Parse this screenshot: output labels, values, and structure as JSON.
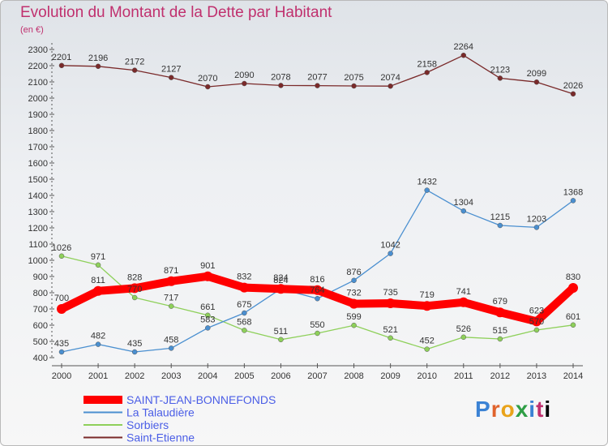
{
  "chart_data": {
    "type": "line",
    "title": "Evolution du Montant de la Dette par Habitant",
    "subtitle": "(en €)",
    "x": [
      "2000",
      "2001",
      "2002",
      "2003",
      "2004",
      "2005",
      "2006",
      "2007",
      "2008",
      "2009",
      "2010",
      "2011",
      "2012",
      "2013",
      "2014"
    ],
    "ylim": [
      400,
      2300
    ],
    "yticks": [
      400,
      500,
      600,
      700,
      800,
      900,
      1000,
      1100,
      1200,
      1300,
      1400,
      1500,
      1600,
      1700,
      1800,
      1900,
      2000,
      2100,
      2200,
      2300
    ],
    "grid": false,
    "legend_position": "bottom-left",
    "series": [
      {
        "name": "SAINT-JEAN-BONNEFONDS",
        "color": "#ff0000",
        "values": [
          700,
          811,
          828,
          871,
          901,
          832,
          824,
          816,
          732,
          735,
          719,
          741,
          679,
          623,
          830
        ]
      },
      {
        "name": "La Talaudière",
        "color": "#4a8fd0",
        "values": [
          435,
          482,
          435,
          458,
          583,
          675,
          824,
          764,
          876,
          1042,
          1432,
          1304,
          1215,
          1203,
          1368
        ]
      },
      {
        "name": "Sorbiers",
        "color": "#8ed05a",
        "values": [
          1026,
          971,
          770,
          717,
          661,
          568,
          511,
          550,
          599,
          521,
          452,
          526,
          515,
          570,
          601
        ]
      },
      {
        "name": "Saint-Etienne",
        "color": "#7a2a2a",
        "values": [
          2201,
          2196,
          2172,
          2127,
          2070,
          2090,
          2078,
          2077,
          2075,
          2074,
          2158,
          2264,
          2123,
          2099,
          2026
        ]
      }
    ]
  },
  "logo": {
    "letters": [
      "P",
      "r",
      "o",
      "x",
      "i",
      "t",
      "i"
    ]
  }
}
